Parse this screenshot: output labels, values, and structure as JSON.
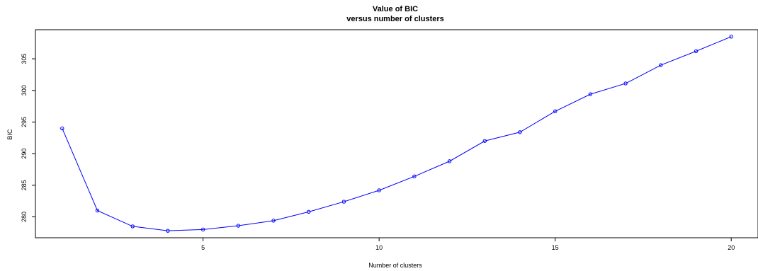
{
  "chart_data": {
    "type": "line",
    "title": "Value of BIC",
    "subtitle": "versus number of clusters",
    "xlabel": "Number of clusters",
    "ylabel": "BIC",
    "xlim": [
      0.24,
      20.76
    ],
    "ylim": [
      276.7,
      309.6
    ],
    "x_ticks": [
      5,
      10,
      15,
      20
    ],
    "y_ticks": [
      280,
      285,
      290,
      295,
      300,
      305
    ],
    "color": "#0000ff",
    "series": [
      {
        "x": [
          1,
          2,
          3,
          4,
          5,
          6,
          7,
          8,
          9,
          10,
          11,
          12,
          13,
          14,
          15,
          16,
          17,
          18,
          19,
          20
        ],
        "values": [
          294.0,
          281.0,
          278.5,
          277.8,
          278.0,
          278.6,
          279.4,
          280.8,
          282.4,
          284.2,
          286.4,
          288.8,
          292.0,
          293.4,
          296.7,
          299.4,
          301.1,
          304.0,
          306.2,
          308.5
        ]
      }
    ]
  }
}
